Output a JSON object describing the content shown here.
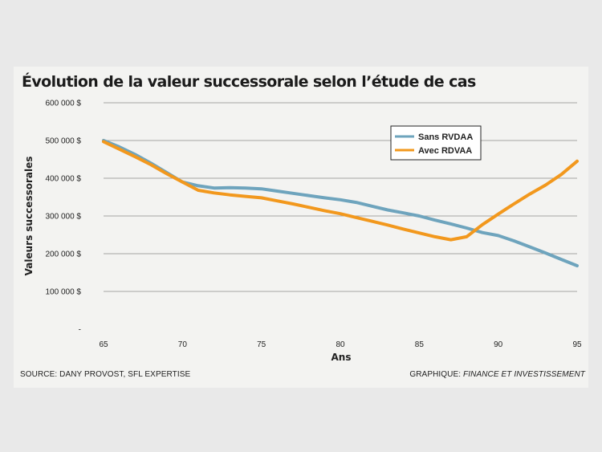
{
  "title": "Évolution de la valeur successorale selon l’étude de cas",
  "source": "SOURCE: DANY PROVOST, SFL EXPERTISE",
  "credit_prefix": "GRAPHIQUE:",
  "credit_italic": "FINANCE ET INVESTISSEMENT",
  "colors": {
    "sans": "#6ea4bd",
    "avec": "#f2981d",
    "grid": "#8a8a8a",
    "background": "#f3f3f1"
  },
  "chart_data": {
    "type": "line",
    "title": "Évolution de la valeur successorale selon l’étude de cas",
    "xlabel": "Ans",
    "ylabel": "Valeurs successorales",
    "xlim": [
      65,
      95
    ],
    "ylim": [
      0,
      600000
    ],
    "x_ticks": [
      65,
      70,
      75,
      80,
      85,
      90,
      95
    ],
    "y_ticks": [
      0,
      100000,
      200000,
      300000,
      400000,
      500000,
      600000
    ],
    "y_tick_labels": [
      "-",
      "100 000 $",
      "200 000 $",
      "300 000 $",
      "400 000 $",
      "500 000 $",
      "600 000 $"
    ],
    "grid": true,
    "legend_position": "top-right",
    "x": [
      65,
      66,
      67,
      68,
      69,
      70,
      71,
      72,
      73,
      74,
      75,
      76,
      77,
      78,
      79,
      80,
      81,
      82,
      83,
      84,
      85,
      86,
      87,
      88,
      89,
      90,
      91,
      92,
      93,
      94,
      95
    ],
    "series": [
      {
        "name": "Sans RVDAA",
        "color": "#6ea4bd",
        "values": [
          500000,
          483000,
          463000,
          440000,
          415000,
          390000,
          380000,
          374000,
          375000,
          374000,
          372000,
          366000,
          360000,
          354000,
          348000,
          343000,
          336000,
          326000,
          316000,
          308000,
          300000,
          289000,
          279000,
          268000,
          256000,
          248000,
          234000,
          218000,
          202000,
          185000,
          168000
        ]
      },
      {
        "name": "Avec RDVAA",
        "color": "#f2981d",
        "values": [
          497000,
          477000,
          457000,
          436000,
          412000,
          390000,
          368000,
          361000,
          356000,
          352000,
          348000,
          340000,
          332000,
          323000,
          314000,
          306000,
          296000,
          286000,
          276000,
          265000,
          255000,
          245000,
          237000,
          245000,
          277000,
          305000,
          332000,
          358000,
          382000,
          410000,
          445000
        ]
      }
    ]
  }
}
